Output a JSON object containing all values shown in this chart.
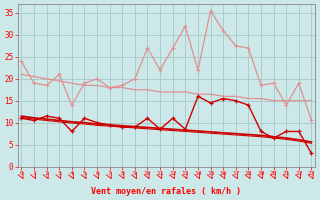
{
  "x": [
    0,
    1,
    2,
    3,
    4,
    5,
    6,
    7,
    8,
    9,
    10,
    11,
    12,
    13,
    14,
    15,
    16,
    17,
    18,
    19,
    20,
    21,
    22,
    23
  ],
  "series_pink_jagged": [
    24,
    19,
    18.5,
    21,
    14,
    19,
    20,
    18,
    18.5,
    20,
    27,
    22,
    27,
    32,
    22,
    35.5,
    31,
    27.5,
    27,
    18.5,
    19,
    14,
    19,
    10.5
  ],
  "series_pink_straight": [
    21,
    20.5,
    20,
    19.5,
    19,
    18.5,
    18.5,
    18,
    18,
    17.5,
    17.5,
    17,
    17,
    17,
    16.5,
    16.5,
    16,
    16,
    15.5,
    15.5,
    15,
    15,
    15,
    15
  ],
  "series_red_jagged": [
    11,
    10.5,
    11.5,
    11,
    8,
    11,
    10,
    9.5,
    9,
    9,
    11,
    8.5,
    11,
    8.5,
    16,
    14.5,
    15.5,
    15,
    14,
    8,
    6.5,
    8,
    8,
    3
  ],
  "series_red_line1": [
    11.2,
    10.8,
    10.5,
    10.2,
    9.9,
    9.7,
    9.4,
    9.2,
    9.0,
    8.8,
    8.6,
    8.4,
    8.2,
    8.0,
    7.8,
    7.6,
    7.4,
    7.2,
    7.0,
    6.8,
    6.5,
    6.2,
    5.8,
    5.3
  ],
  "series_red_line2": [
    11.5,
    11.1,
    10.8,
    10.5,
    10.2,
    10.0,
    9.7,
    9.5,
    9.3,
    9.1,
    8.9,
    8.7,
    8.5,
    8.3,
    8.1,
    7.9,
    7.7,
    7.5,
    7.3,
    7.1,
    6.8,
    6.5,
    6.1,
    5.6
  ],
  "color_pink": "#e09090",
  "color_red": "#cc0000",
  "bg_color": "#cce8e8",
  "grid_color": "#aacccc",
  "xlabel": "Vent moyen/en rafales ( km/h )",
  "ylim": [
    0,
    37
  ],
  "xlim": [
    0,
    23
  ],
  "yticks": [
    0,
    5,
    10,
    15,
    20,
    25,
    30,
    35
  ],
  "xticks": [
    0,
    1,
    2,
    3,
    4,
    5,
    6,
    7,
    8,
    9,
    10,
    11,
    12,
    13,
    14,
    15,
    16,
    17,
    18,
    19,
    20,
    21,
    22,
    23
  ]
}
